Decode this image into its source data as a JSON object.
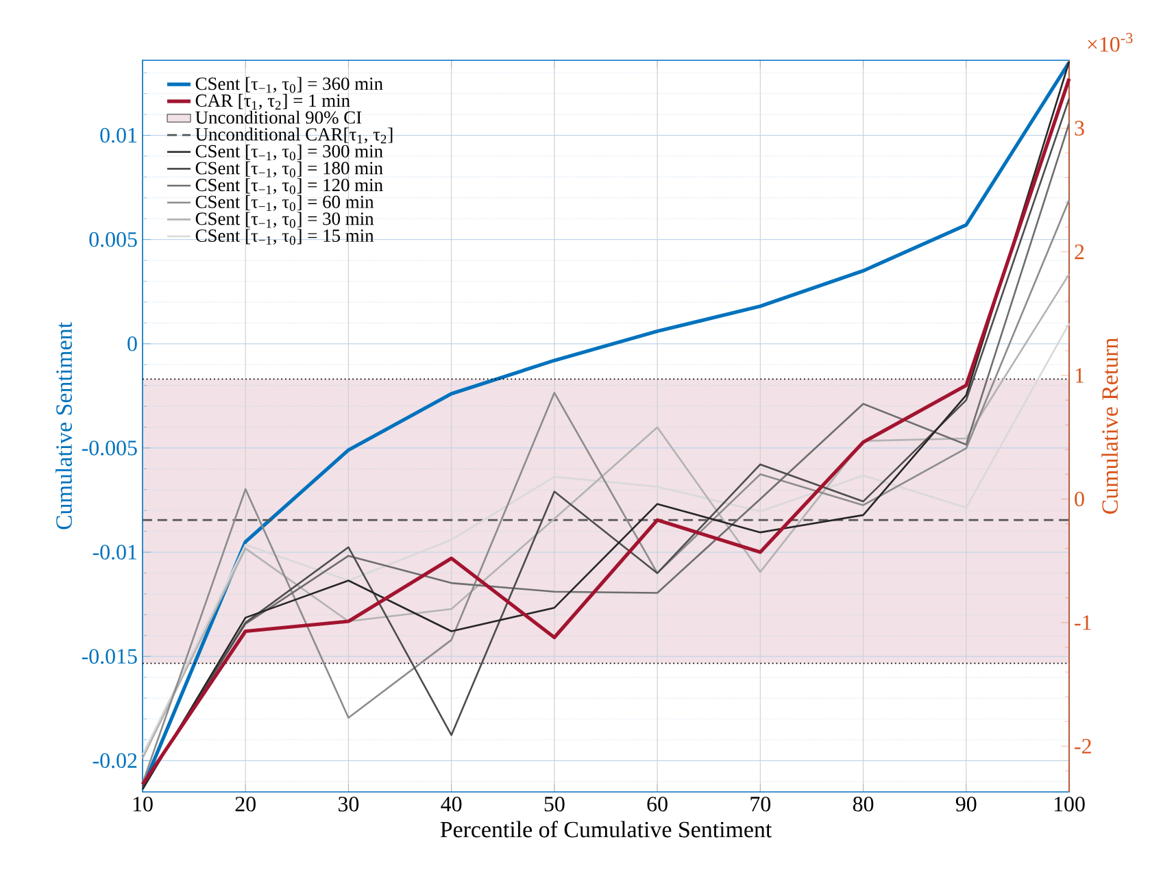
{
  "chart_data": {
    "type": "line",
    "xlabel": "Percentile of Cumulative Sentiment",
    "ylabel": "Cumulative Sentiment",
    "y2label": "Cumulative Return",
    "x": [
      10,
      20,
      30,
      40,
      50,
      60,
      70,
      80,
      90,
      100
    ],
    "xlim": [
      10,
      100
    ],
    "xticks": [
      10,
      20,
      30,
      40,
      50,
      60,
      70,
      80,
      90,
      100
    ],
    "ylim": [
      -0.0215,
      0.0136
    ],
    "yticks": [
      {
        "value": -0.021,
        "label": null
      },
      -0.02,
      {
        "value": -0.019,
        "label": null
      },
      {
        "value": -0.018,
        "label": null
      },
      {
        "value": -0.017,
        "label": null
      },
      {
        "value": -0.016,
        "label": null
      },
      -0.015,
      {
        "value": -0.014,
        "label": null
      },
      {
        "value": -0.013,
        "label": null
      },
      {
        "value": -0.012,
        "label": null
      },
      {
        "value": -0.011,
        "label": null
      },
      -0.01,
      {
        "value": -0.009,
        "label": null
      },
      {
        "value": -0.008,
        "label": null
      },
      {
        "value": -0.007,
        "label": null
      },
      {
        "value": -0.006,
        "label": null
      },
      -0.005,
      {
        "value": -0.004,
        "label": null
      },
      {
        "value": -0.003,
        "label": null
      },
      {
        "value": -0.002,
        "label": null
      },
      {
        "value": -0.001,
        "label": null
      },
      0,
      {
        "value": 0.001,
        "label": null
      },
      {
        "value": 0.002,
        "label": null
      },
      {
        "value": 0.003,
        "label": null
      },
      {
        "value": 0.004,
        "label": null
      },
      0.005,
      {
        "value": 0.006,
        "label": null
      },
      {
        "value": 0.007,
        "label": null
      },
      {
        "value": 0.008,
        "label": null
      },
      {
        "value": 0.009,
        "label": null
      },
      0.01,
      {
        "value": 0.011,
        "label": null
      },
      {
        "value": 0.012,
        "label": null
      },
      {
        "value": 0.013,
        "label": null
      }
    ],
    "y2lim": [
      -2.37,
      3.55
    ],
    "y2ticks": [
      {
        "value": -2.2,
        "label": null
      },
      -2,
      {
        "value": -1.8,
        "label": null
      },
      {
        "value": -1.6,
        "label": null
      },
      {
        "value": -1.4,
        "label": null
      },
      {
        "value": -1.2,
        "label": null
      },
      -1,
      {
        "value": -0.8,
        "label": null
      },
      {
        "value": -0.6,
        "label": null
      },
      {
        "value": -0.4,
        "label": null
      },
      {
        "value": -0.2,
        "label": null
      },
      0,
      {
        "value": 0.2,
        "label": null
      },
      {
        "value": 0.4,
        "label": null
      },
      {
        "value": 0.6,
        "label": null
      },
      {
        "value": 0.8,
        "label": null
      },
      1,
      {
        "value": 1.2,
        "label": null
      },
      {
        "value": 1.4,
        "label": null
      },
      {
        "value": 1.6,
        "label": null
      },
      {
        "value": 1.8,
        "label": null
      },
      2,
      {
        "value": 2.2,
        "label": null
      },
      {
        "value": 2.4,
        "label": null
      },
      {
        "value": 2.6,
        "label": null
      },
      {
        "value": 2.8,
        "label": null
      },
      3,
      {
        "value": 3.2,
        "label": null
      },
      {
        "value": 3.4,
        "label": null
      }
    ],
    "annotations": [
      "×10$^{-3}$"
    ],
    "grid": true,
    "legend": "top left",
    "marker": "none",
    "line_style": "solid",
    "series": [
      {
        "name": "CSent [τ$_{−1}$, τ$_{0}$] = 360 min",
        "color": "#0072bd",
        "values": [
          -0.0213,
          -0.0095,
          -0.0051,
          -0.0024,
          -0.0008,
          0.0006,
          0.0018,
          0.0035,
          0.0057,
          0.0135
        ]
      },
      {
        "name": "CAR [τ$_{1}$, τ$_{2}$] = 1 min",
        "color": "#a2142f",
        "axis": "y2",
        "values": [
          -2.31,
          -1.07,
          -0.99,
          -0.48,
          -1.12,
          -0.17,
          -0.43,
          0.46,
          0.92,
          3.4
        ]
      },
      {
        "name": "CSent [τ$_{−1}$, τ$_{0}$] = 300 min",
        "color": "#262626",
        "axis": "y2",
        "values": [
          -2.35,
          -0.96,
          -0.66,
          -1.07,
          -0.88,
          -0.04,
          -0.27,
          -0.13,
          0.84,
          3.54
        ]
      },
      {
        "name": "CSent [τ$_{−1}$, τ$_{0}$] = 180 min",
        "color": "#4d4d4d",
        "axis": "y2",
        "values": [
          -2.33,
          -1.0,
          -0.39,
          -1.91,
          0.06,
          -0.6,
          0.28,
          -0.02,
          0.8,
          3.24
        ]
      },
      {
        "name": "CSent [τ$_{−1}$, τ$_{0}$] = 120 min",
        "color": "#6e6e6e",
        "axis": "y2",
        "values": [
          -2.33,
          -1.01,
          -0.46,
          -0.68,
          -0.75,
          -0.76,
          0.0,
          0.77,
          0.44,
          3.04
        ]
      },
      {
        "name": "CSent [τ$_{−1}$, τ$_{0}$] = 60 min",
        "color": "#8c8c8c",
        "axis": "y2",
        "values": [
          -2.3,
          0.08,
          -1.77,
          -1.14,
          0.86,
          -0.6,
          0.2,
          -0.05,
          0.41,
          2.42
        ]
      },
      {
        "name": "CSent [τ$_{−1}$, τ$_{0}$] = 30 min",
        "color": "#b3b3b3",
        "axis": "y2",
        "values": [
          -2.1,
          -0.4,
          -0.99,
          -0.89,
          -0.16,
          0.58,
          -0.59,
          0.47,
          0.49,
          1.82
        ]
      },
      {
        "name": "CSent [τ$_{−1}$, τ$_{0}$] = 15 min",
        "color": "#d9d9d9",
        "axis": "y2",
        "values": [
          -2.07,
          -0.37,
          -0.66,
          -0.33,
          0.18,
          0.1,
          -0.1,
          0.19,
          -0.07,
          1.42
        ]
      }
    ],
    "bands": [
      {
        "axis": "y2",
        "from": -1.33,
        "to": 0.97,
        "label": "Unconditional 90% CI",
        "color": "#f2e1e6"
      }
    ],
    "ref_lines": [
      {
        "axis": "y2",
        "value": -0.17,
        "label": "Unconditional CAR[τ$_{1}$, τ$_{2}$]",
        "color": "#555555",
        "line_style": "dashed"
      },
      {
        "axis": "y2",
        "value": 0.97,
        "color": "#000000",
        "line_style": "dotted"
      },
      {
        "axis": "y2",
        "value": -1.33,
        "color": "#000000",
        "line_style": "dotted"
      }
    ]
  }
}
